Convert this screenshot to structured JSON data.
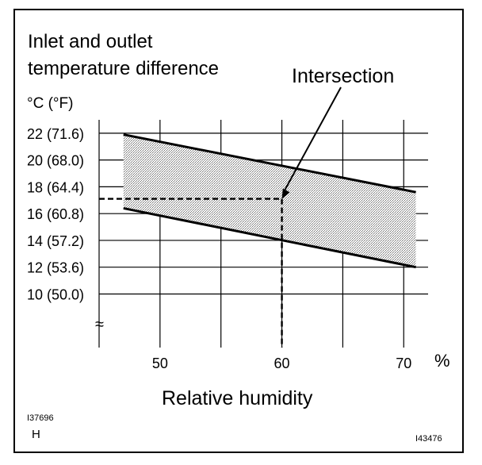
{
  "chart_data": {
    "type": "area",
    "title_lines": [
      "Inlet and outlet",
      "temperature difference"
    ],
    "y_unit": "°C (°F)",
    "xlabel": "Relative humidity",
    "x_unit": "%",
    "x_ticks": [
      50,
      60,
      70
    ],
    "y_ticks": [
      {
        "value": 22,
        "label": "22 (71.6)"
      },
      {
        "value": 20,
        "label": "20 (68.0)"
      },
      {
        "value": 18,
        "label": "18 (64.4)"
      },
      {
        "value": 16,
        "label": "16 (60.8)"
      },
      {
        "value": 14,
        "label": "14 (57.2)"
      },
      {
        "value": 12,
        "label": "12 (53.6)"
      },
      {
        "value": 10,
        "label": "10 (50.0)"
      }
    ],
    "xlim": [
      45,
      72
    ],
    "ylim": [
      6,
      23
    ],
    "axis_break_symbol": "≈",
    "grid": true,
    "series": [
      {
        "values": [
          [
            47,
            21.9
          ],
          [
            71,
            17.6
          ]
        ]
      },
      {
        "values": [
          [
            47,
            16.4
          ],
          [
            71,
            12.0
          ]
        ]
      }
    ],
    "shaded_band_between_series": true,
    "example": {
      "x": 60,
      "y": 17.1,
      "label": "Intersection"
    }
  },
  "figure_codes": {
    "top_left": "I37696",
    "top_left_sub": "H",
    "bottom_right": "I43476"
  }
}
